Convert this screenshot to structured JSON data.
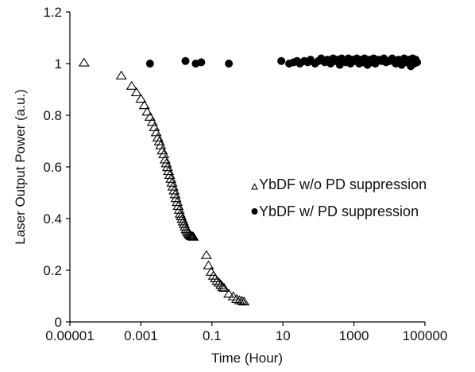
{
  "chart_data": {
    "type": "scatter",
    "title": "",
    "xlabel": "Time (Hour)",
    "ylabel": "Laser Output Power (a.u.)",
    "x_scale": "log",
    "xlim": [
      1e-05,
      100000
    ],
    "ylim": [
      0,
      1.2
    ],
    "x_ticks": [
      "0.00001",
      "0.001",
      "0.1",
      "10",
      "1000",
      "100000"
    ],
    "y_ticks": [
      "0",
      "0.2",
      "0.4",
      "0.6",
      "0.8",
      "1",
      "1.2"
    ],
    "grid": false,
    "legend_position": "center-right",
    "series": [
      {
        "name": "YbDF w/o PD suppression",
        "marker": "open-triangle",
        "color": "#000000",
        "x": [
          2.5e-05,
          0.00028,
          0.00055,
          0.00075,
          0.001,
          0.00125,
          0.0015,
          0.0018,
          0.0021,
          0.0024,
          0.0027,
          0.003,
          0.0033,
          0.0036,
          0.004,
          0.0044,
          0.0048,
          0.0052,
          0.0056,
          0.006,
          0.0065,
          0.007,
          0.0075,
          0.008,
          0.0086,
          0.0092,
          0.0098,
          0.0105,
          0.0112,
          0.012,
          0.0128,
          0.0136,
          0.0145,
          0.0155,
          0.0165,
          0.0176,
          0.0188,
          0.02,
          0.0213,
          0.0227,
          0.024,
          0.0255,
          0.027,
          0.0285,
          0.03,
          0.07,
          0.08,
          0.095,
          0.11,
          0.125,
          0.14,
          0.16,
          0.18,
          0.2,
          0.22,
          0.3,
          0.4,
          0.5,
          0.6,
          0.7,
          0.8
        ],
        "y": [
          1.0,
          0.95,
          0.91,
          0.885,
          0.86,
          0.835,
          0.81,
          0.79,
          0.77,
          0.75,
          0.73,
          0.71,
          0.695,
          0.68,
          0.66,
          0.645,
          0.625,
          0.61,
          0.595,
          0.58,
          0.565,
          0.55,
          0.535,
          0.52,
          0.505,
          0.49,
          0.475,
          0.46,
          0.445,
          0.43,
          0.415,
          0.405,
          0.395,
          0.385,
          0.375,
          0.365,
          0.355,
          0.348,
          0.342,
          0.337,
          0.333,
          0.33,
          0.328,
          0.327,
          0.326,
          0.255,
          0.215,
          0.19,
          0.175,
          0.165,
          0.155,
          0.148,
          0.14,
          0.132,
          0.128,
          0.105,
          0.095,
          0.085,
          0.08,
          0.078,
          0.075
        ]
      },
      {
        "name": "YbDF w/ PD suppression",
        "marker": "filled-circle",
        "color": "#000000",
        "x": [
          0.0018,
          0.018,
          0.035,
          0.05,
          0.3,
          9,
          15,
          20,
          25,
          30,
          40,
          50,
          60,
          80,
          100,
          120,
          150,
          180,
          220,
          260,
          300,
          350,
          400,
          450,
          500,
          600,
          700,
          800,
          900,
          1000,
          1200,
          1400,
          1600,
          1800,
          2000,
          2400,
          2800,
          3200,
          3600,
          4000,
          5000,
          6000,
          7000,
          8000,
          10000,
          12000,
          15000,
          18000,
          22000,
          26000,
          30000,
          35000,
          40000,
          45000,
          50000,
          55000,
          60000
        ],
        "y": [
          1.0,
          1.01,
          1.0,
          1.005,
          1.0,
          1.01,
          1.0,
          1.005,
          1.01,
          1.0,
          1.01,
          1.005,
          1.015,
          1.0,
          1.01,
          1.02,
          1.005,
          1.015,
          1.0,
          1.02,
          1.01,
          1.015,
          0.995,
          1.02,
          1.01,
          1.005,
          1.02,
          1.0,
          1.015,
          1.01,
          1.02,
          1.0,
          1.015,
          1.005,
          1.02,
          0.995,
          1.015,
          1.005,
          1.02,
          1.0,
          1.015,
          1.01,
          1.02,
          1.005,
          1.01,
          1.02,
          1.0,
          1.015,
          0.995,
          1.02,
          1.005,
          1.015,
          0.99,
          1.02,
          1.0,
          1.015,
          1.005
        ]
      }
    ]
  }
}
